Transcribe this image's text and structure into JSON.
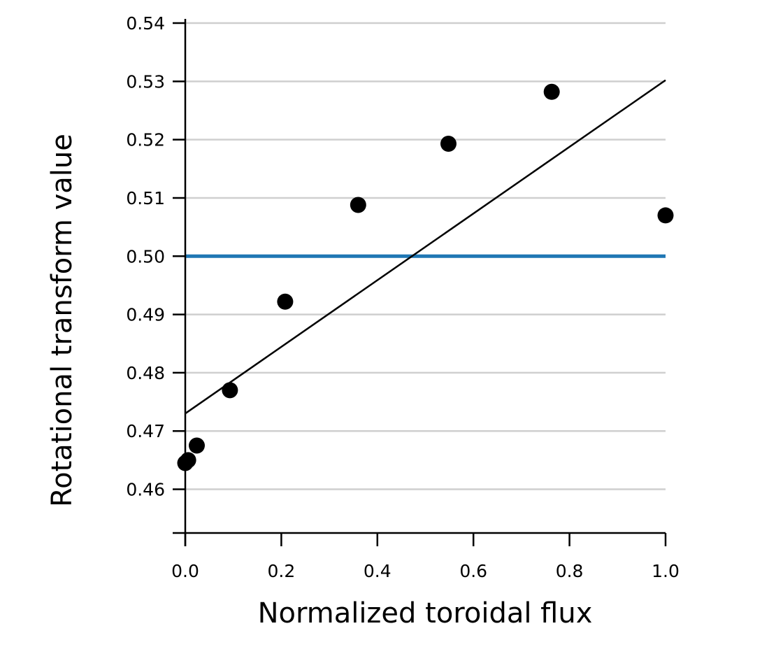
{
  "chart_data": {
    "type": "scatter",
    "xlabel": "Normalized toroidal flux",
    "ylabel": "Rotational transform value",
    "xlim": [
      0.0,
      1.0
    ],
    "ylim": [
      0.4525,
      0.54
    ],
    "x_ticks": [
      "0.0",
      "0.2",
      "0.4",
      "0.6",
      "0.8",
      "1.0"
    ],
    "y_ticks": [
      "0.46",
      "0.47",
      "0.48",
      "0.49",
      "0.50",
      "0.51",
      "0.52",
      "0.53",
      "0.54"
    ],
    "grid": true,
    "points": [
      {
        "x": 0.0,
        "y": 0.4645
      },
      {
        "x": 0.006,
        "y": 0.465
      },
      {
        "x": 0.024,
        "y": 0.4675
      },
      {
        "x": 0.093,
        "y": 0.477
      },
      {
        "x": 0.208,
        "y": 0.4922
      },
      {
        "x": 0.36,
        "y": 0.5088
      },
      {
        "x": 0.548,
        "y": 0.5193
      },
      {
        "x": 0.763,
        "y": 0.5282
      },
      {
        "x": 1.0,
        "y": 0.507
      }
    ],
    "fit_line": {
      "x": [
        0.0,
        1.0
      ],
      "y": [
        0.473,
        0.5302
      ]
    },
    "reference_line": {
      "y": 0.5,
      "color": "#1f77b4"
    }
  }
}
